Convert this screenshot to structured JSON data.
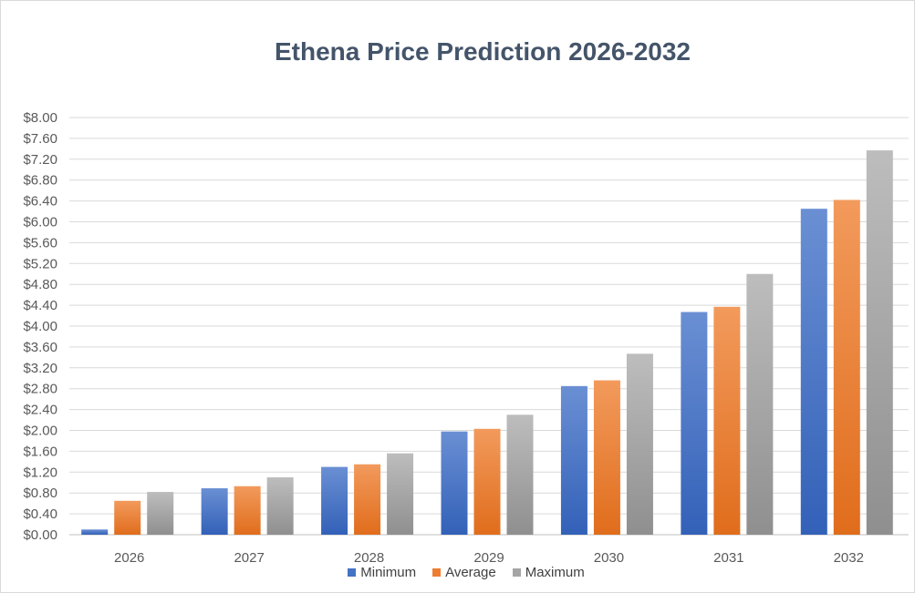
{
  "chart_data": {
    "type": "bar",
    "title": "Ethena Price Prediction 2026-2032",
    "categories": [
      "2026",
      "2027",
      "2028",
      "2029",
      "2030",
      "2031",
      "2032"
    ],
    "series": [
      {
        "name": "Minimum",
        "color": "#4472c4",
        "values": [
          0.1,
          0.89,
          1.3,
          1.98,
          2.85,
          4.27,
          6.25
        ]
      },
      {
        "name": "Average",
        "color": "#ed7d31",
        "values": [
          0.65,
          0.93,
          1.35,
          2.03,
          2.96,
          4.37,
          6.42
        ]
      },
      {
        "name": "Maximum",
        "color": "#a5a5a5",
        "values": [
          0.82,
          1.1,
          1.56,
          2.3,
          3.47,
          5.0,
          7.37
        ]
      }
    ],
    "ylim": [
      0,
      8
    ],
    "yticks": [
      "$0.00",
      "$0.40",
      "$0.80",
      "$1.20",
      "$1.60",
      "$2.00",
      "$2.40",
      "$2.80",
      "$3.20",
      "$3.60",
      "$4.00",
      "$4.40",
      "$4.80",
      "$5.20",
      "$5.60",
      "$6.00",
      "$6.40",
      "$6.80",
      "$7.20",
      "$7.60",
      "$8.00"
    ],
    "xlabel": "",
    "ylabel": "",
    "grid": true,
    "legend": "bottom"
  }
}
